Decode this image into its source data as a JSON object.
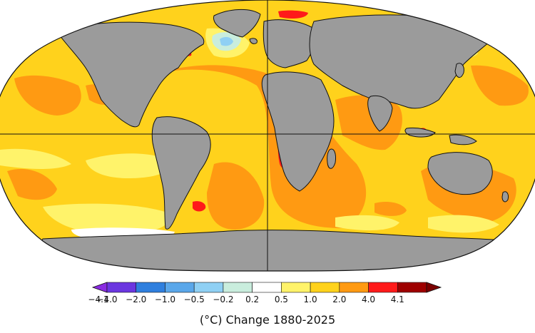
{
  "legend": {
    "caption": "(°C) Change 1880-2025",
    "tick_labels": [
      "−4.1",
      "−4.0",
      "−2.0",
      "−1.0",
      "−0.5",
      "−0.2",
      "0.2",
      "0.5",
      "1.0",
      "2.0",
      "4.0",
      "4.1"
    ],
    "bin_colors": [
      "#6b36e0",
      "#2f7fde",
      "#5aa7ea",
      "#8fd0f4",
      "#c9eddd",
      "#ffffff",
      "#fff36a",
      "#ffd21c",
      "#ff9a12",
      "#ff1a1a",
      "#9e0000"
    ],
    "underflow_color": "#8a2be2",
    "overflow_color": "#7a0000"
  },
  "map": {
    "projection": "robinson",
    "land_color": "#9b9b9b",
    "coastline_color": "#111111",
    "gridlines": [
      "equator",
      "prime-meridian"
    ]
  }
}
